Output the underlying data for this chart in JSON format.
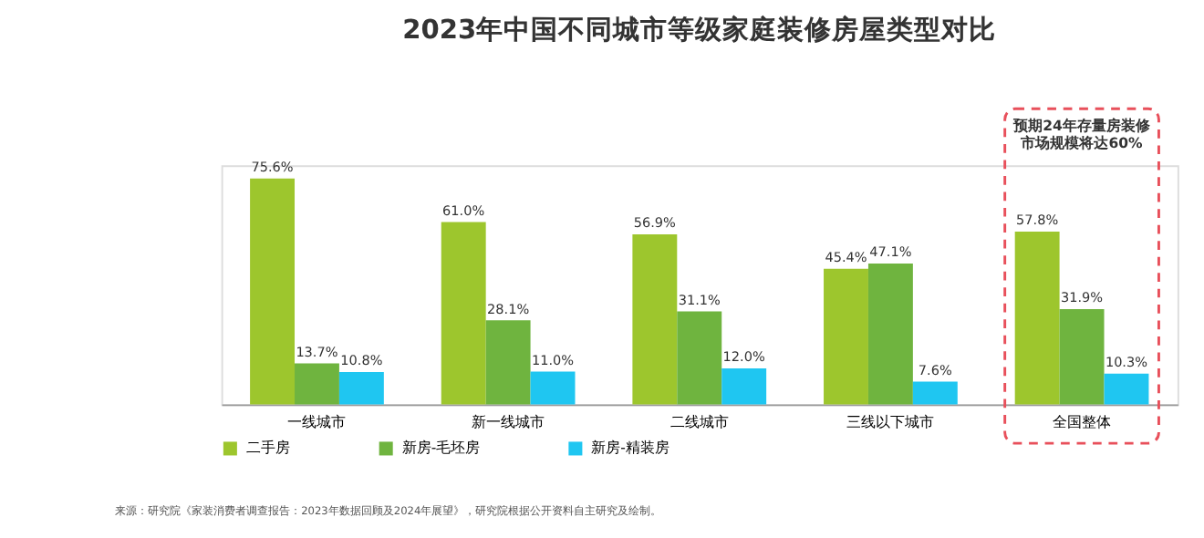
{
  "chart_data": {
    "type": "bar",
    "title": "2023年中国不同城市等级家庭装修房屋类型对比",
    "categories": [
      "一线城市",
      "新一线城市",
      "二线城市",
      "三线以下城市",
      "全国整体"
    ],
    "series": [
      {
        "name": "二手房",
        "color": "#9dc62d",
        "values": [
          75.6,
          61.0,
          56.9,
          45.4,
          57.8
        ],
        "value_labels": [
          "75.6%",
          "61.0%",
          "56.9%",
          "45.4%",
          "57.8%"
        ]
      },
      {
        "name": "新房-毛坯房",
        "color": "#6fb43f",
        "values": [
          13.7,
          28.1,
          31.1,
          47.1,
          31.9
        ],
        "value_labels": [
          "13.7%",
          "28.1%",
          "31.1%",
          "47.1%",
          "31.9%"
        ]
      },
      {
        "name": "新房-精装房",
        "color": "#1fc6f1",
        "values": [
          10.8,
          11.0,
          12.0,
          7.6,
          10.3
        ],
        "value_labels": [
          "10.8%",
          "11.0%",
          "12.0%",
          "7.6%",
          "10.3%"
        ]
      }
    ],
    "annotations": [
      "预期24年存量房装修市场规模将达60%",
      "来源：研究院《家装消费者调查报告：2023年数据回顾及2024年展望》，研究院根据公开资料自主研究及绘制。"
    ],
    "legend": "bottom",
    "grid": false
  }
}
